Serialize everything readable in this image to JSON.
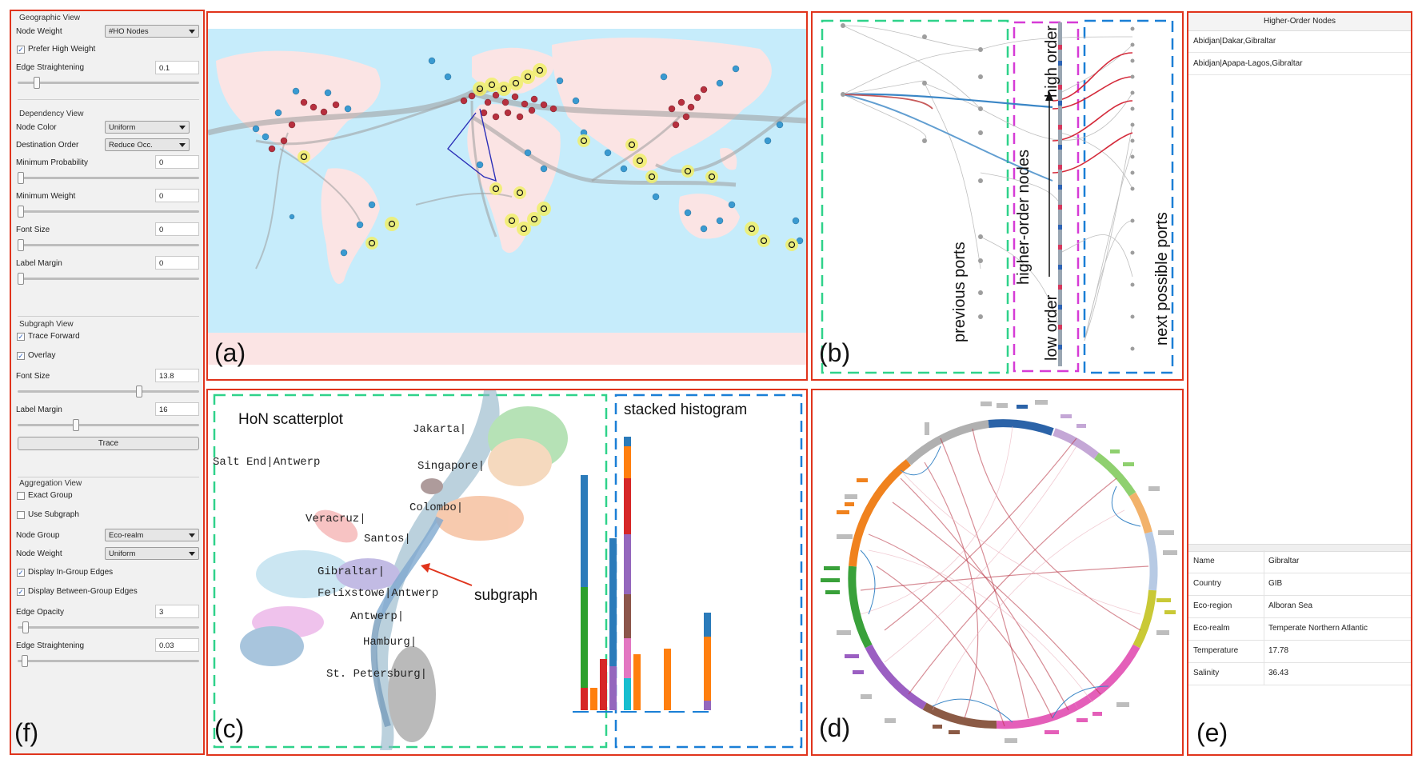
{
  "panels": {
    "a": "(a)",
    "b": "(b)",
    "c": "(c)",
    "d": "(d)",
    "e": "(e)",
    "f": "(f)"
  },
  "controls": {
    "geographic_view": {
      "title": "Geographic View",
      "node_weight_label": "Node Weight",
      "node_weight_value": "#HO Nodes",
      "prefer_high_weight": "Prefer High Weight",
      "prefer_high_weight_checked": true,
      "edge_straightening_label": "Edge Straightening",
      "edge_straightening_value": "0.1",
      "edge_straightening_level": 0.1
    },
    "dependency_view": {
      "title": "Dependency View",
      "node_color_label": "Node Color",
      "node_color_value": "Uniform",
      "destination_order_label": "Destination Order",
      "destination_order_value": "Reduce Occ.",
      "min_probability_label": "Minimum Probability",
      "min_probability_value": "0",
      "min_weight_label": "Minimum Weight",
      "min_weight_value": "0",
      "font_size_label": "Font Size",
      "font_size_value": "0",
      "label_margin_label": "Label Margin",
      "label_margin_value": "0"
    },
    "subgraph_view": {
      "title": "Subgraph View",
      "trace_forward": "Trace Forward",
      "trace_forward_checked": true,
      "overlay": "Overlay",
      "overlay_checked": true,
      "font_size_label": "Font Size",
      "font_size_value": "13.8",
      "font_size_level": 0.69,
      "label_margin_label": "Label Margin",
      "label_margin_value": "16",
      "label_margin_level": 0.32,
      "trace_button": "Trace"
    },
    "aggregation_view": {
      "title": "Aggregation View",
      "exact_group": "Exact Group",
      "exact_group_checked": false,
      "use_subgraph": "Use Subgraph",
      "use_subgraph_checked": false,
      "node_group_label": "Node Group",
      "node_group_value": "Eco-realm",
      "node_weight_label": "Node Weight",
      "node_weight_value": "Uniform",
      "in_group_edges": "Display In-Group Edges",
      "in_group_edges_checked": true,
      "between_group_edges": "Display Between-Group Edges",
      "between_group_edges_checked": true,
      "edge_opacity_label": "Edge Opacity",
      "edge_opacity_value": "3",
      "edge_opacity_level": 0.03,
      "edge_straightening_label": "Edge Straightening",
      "edge_straightening_value": "0.03",
      "edge_straightening_level": 0.03
    }
  },
  "dependency": {
    "previous_ports": "previous ports",
    "higher_order_nodes": "higher-order nodes",
    "high_order": "high order",
    "low_order": "low order",
    "next_possible_ports": "next possible ports"
  },
  "scatter": {
    "title": "HoN scatterplot",
    "histogram_title": "stacked histogram",
    "subgraph_label": "subgraph",
    "port_labels": [
      "Jakarta|",
      "Salt End|Antwerp",
      "Singapore|",
      "Colombo|",
      "Veracruz|",
      "Santos|",
      "Gibraltar|",
      "Felixstowe|Antwerp",
      "Antwerp|",
      "Hamburg|",
      "St. Petersburg|"
    ]
  },
  "hon_list": {
    "header": "Higher-Order Nodes",
    "items": [
      "Abidjan|Dakar,Gibraltar",
      "Abidjan|Apapa-Lagos,Gibraltar"
    ]
  },
  "properties": [
    {
      "name": "Name",
      "value": "Gibraltar"
    },
    {
      "name": "Country",
      "value": "GIB"
    },
    {
      "name": "Eco-region",
      "value": "Alboran Sea"
    },
    {
      "name": "Eco-realm",
      "value": "Temperate Northern Atlantic"
    },
    {
      "name": "Temperature",
      "value": "17.78"
    },
    {
      "name": "Salinity",
      "value": "36.43"
    }
  ],
  "colors": {
    "panel_border": "#e0341c",
    "ocean": "#c6ecfb",
    "land": "#fbe4e4",
    "highlight": "#f6f23a",
    "green_dash": "#2fd28a",
    "blue_dash": "#1a7fd6",
    "magenta_dash": "#d63bd6"
  }
}
